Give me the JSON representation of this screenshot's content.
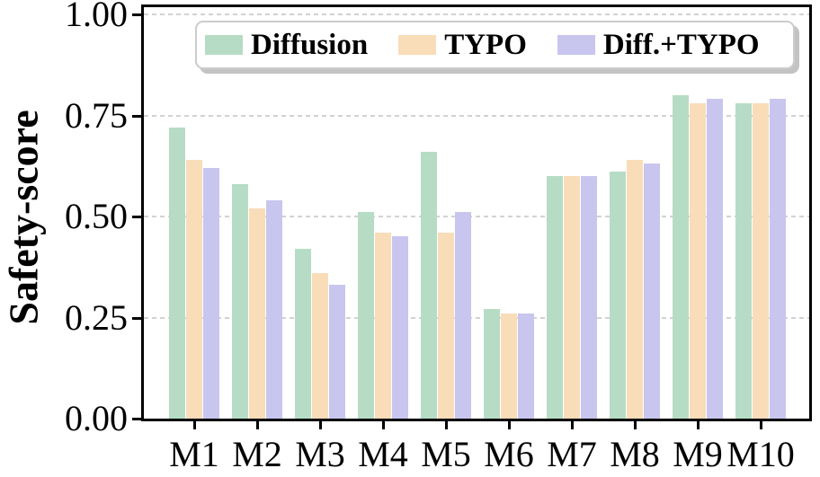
{
  "chart_data": {
    "type": "bar",
    "title": "",
    "xlabel": "",
    "ylabel": "Safety-score",
    "categories": [
      "M1",
      "M2",
      "M3",
      "M4",
      "M5",
      "M6",
      "M7",
      "M8",
      "M9",
      "M10"
    ],
    "series": [
      {
        "name": "Diffusion",
        "color": "#b7dcc5",
        "values": [
          0.72,
          0.58,
          0.42,
          0.51,
          0.66,
          0.27,
          0.6,
          0.61,
          0.8,
          0.78
        ]
      },
      {
        "name": "TYPO",
        "color": "#f8ddb8",
        "values": [
          0.64,
          0.52,
          0.36,
          0.46,
          0.46,
          0.26,
          0.6,
          0.64,
          0.78,
          0.78
        ]
      },
      {
        "name": "Diff.+TYPO",
        "color": "#c8c6ef",
        "values": [
          0.62,
          0.54,
          0.33,
          0.45,
          0.51,
          0.26,
          0.6,
          0.63,
          0.79,
          0.79
        ]
      }
    ],
    "ylim": [
      0,
      1.02
    ],
    "ytick_values": [
      0,
      0.25,
      0.5,
      0.75,
      1.0
    ],
    "ytick_labels": [
      "0.00",
      "0.25",
      "0.50",
      "0.75",
      "1.00"
    ],
    "grid": "horizontal-dashed",
    "legend_position": "upper-center-inside"
  },
  "colors": {
    "background": "#ffffff",
    "axis": "#000000",
    "gridline": "#d2d2d2",
    "legend_border": "#cccccc",
    "legend_shadow": "#c3c3c3"
  }
}
